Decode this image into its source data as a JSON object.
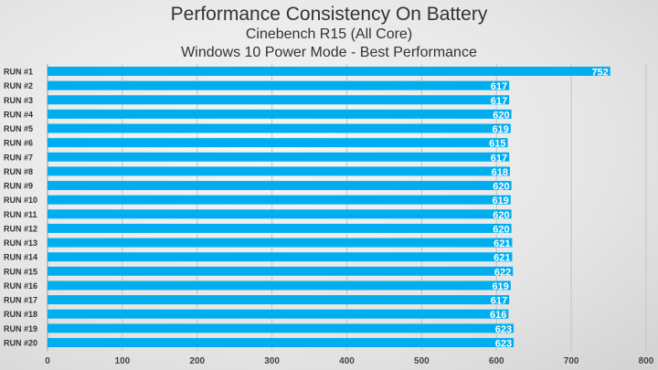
{
  "chart_data": {
    "type": "bar",
    "orientation": "horizontal",
    "title": "Performance Consistency On Battery",
    "subtitle": "Cinebench R15 (All Core)",
    "subtitle2": "Windows 10 Power Mode - Best Performance",
    "categories": [
      "RUN #1",
      "RUN #2",
      "RUN #3",
      "RUN #4",
      "RUN #5",
      "RUN #6",
      "RUN #7",
      "RUN #8",
      "RUN #9",
      "RUN #10",
      "RUN #11",
      "RUN #12",
      "RUN #13",
      "RUN #14",
      "RUN #15",
      "RUN #16",
      "RUN #17",
      "RUN #18",
      "RUN #19",
      "RUN #20"
    ],
    "values": [
      752,
      617,
      617,
      620,
      619,
      615,
      617,
      618,
      620,
      619,
      620,
      620,
      621,
      621,
      622,
      619,
      617,
      616,
      623,
      623
    ],
    "xlim": [
      0,
      800
    ],
    "xticks": [
      0,
      100,
      200,
      300,
      400,
      500,
      600,
      700,
      800
    ],
    "grid": true,
    "bar_color": "#00aeef",
    "label_color": "#ffffff"
  }
}
